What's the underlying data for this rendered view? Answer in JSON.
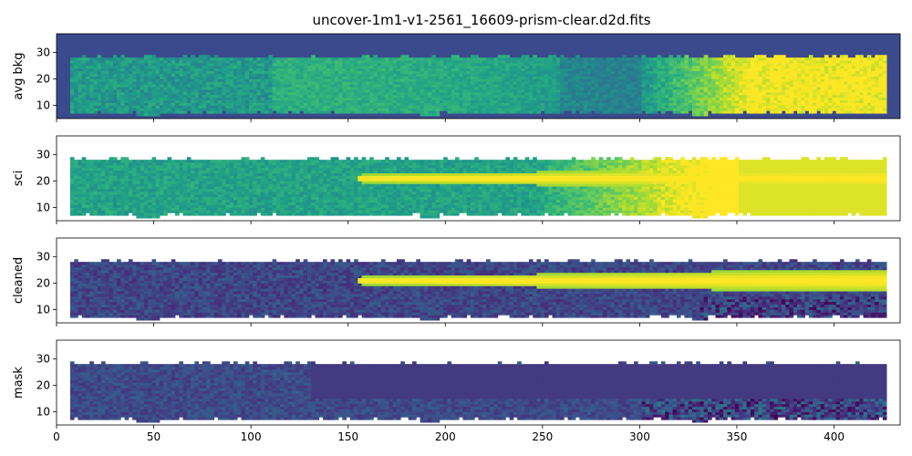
{
  "figure": {
    "title": "uncover-1m1-v1-2561_16609-prism-clear.d2d.fits"
  },
  "chart_data": [
    {
      "type": "heatmap",
      "panel": "avg-bkg",
      "ylabel": "avg bkg",
      "xlim": [
        0,
        434
      ],
      "ylim": [
        5,
        37
      ],
      "yticks": [
        10,
        20,
        30
      ],
      "show_xticklabels": false,
      "colormap": "viridis",
      "background_color": "#3b4a8c",
      "trace": {
        "present": false,
        "x_start": 150,
        "width": 3
      },
      "bright_right_x": 360,
      "notes": "diffuse background brightening to the red end; bright patches near x=57, 250, 336 at the bottom edge"
    },
    {
      "type": "heatmap",
      "panel": "sci",
      "ylabel": "sci",
      "xlim": [
        0,
        434
      ],
      "ylim": [
        5,
        37
      ],
      "yticks": [
        10,
        20,
        30
      ],
      "show_xticklabels": false,
      "colormap": "viridis",
      "background_color": "#ffffff",
      "trace": {
        "present": true,
        "x_start": 155,
        "y_center": 21,
        "width_start": 1.5,
        "width_end": 4.5
      },
      "bright_right_x": 350,
      "notes": "spectrum trace at y≈21 emerging at x≈155; emission feature near x=257"
    },
    {
      "type": "heatmap",
      "panel": "cleaned",
      "ylabel": "cleaned",
      "xlim": [
        0,
        434
      ],
      "ylim": [
        5,
        37
      ],
      "yticks": [
        10,
        20,
        30
      ],
      "show_xticklabels": false,
      "colormap": "viridis",
      "background_color": "#ffffff",
      "trace": {
        "present": true,
        "x_start": 155,
        "y_center": 21,
        "width_start": 1.5,
        "width_end": 4.5
      },
      "bright_right_x": 0,
      "notes": "background-subtracted 2D spectrum with strong trace"
    },
    {
      "type": "heatmap",
      "panel": "mask",
      "ylabel": "mask",
      "xlim": [
        0,
        434
      ],
      "ylim": [
        5,
        37
      ],
      "yticks": [
        10,
        20,
        30
      ],
      "xticks": [
        0,
        50,
        100,
        150,
        200,
        250,
        300,
        350,
        400
      ],
      "show_xticklabels": true,
      "colormap": "viridis",
      "background_color": "#ffffff",
      "trace": {
        "present": false
      },
      "bright_right_x": 0,
      "notes": "masked pixels with trace region removed"
    }
  ]
}
